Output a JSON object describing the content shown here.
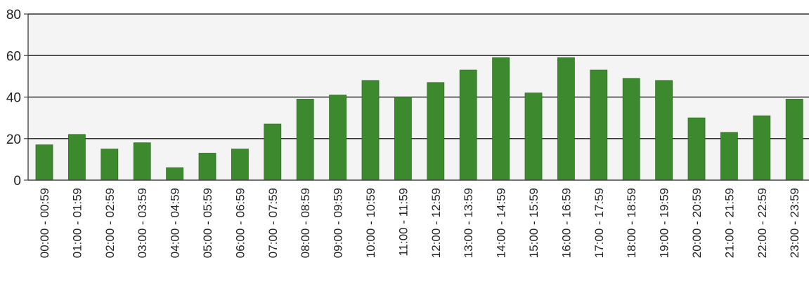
{
  "chart_data": {
    "type": "bar",
    "title": "",
    "xlabel": "",
    "ylabel": "",
    "ylim": [
      0,
      80
    ],
    "yticks": [
      0,
      20,
      40,
      60,
      80
    ],
    "grid": true,
    "legend": "none",
    "categories": [
      "00:00 - 00:59",
      "01:00 - 01:59",
      "02:00 - 02:59",
      "03:00 - 03:59",
      "04:00 - 04:59",
      "05:00 - 05:59",
      "06:00 - 06:59",
      "07:00 - 07:59",
      "08:00 - 08:59",
      "09:00 - 09:59",
      "10:00 - 10:59",
      "11:00 - 11:59",
      "12:00 - 12:59",
      "13:00 - 13:59",
      "14:00 - 14:59",
      "15:00 - 15:59",
      "16:00 - 16:59",
      "17:00 - 17:59",
      "18:00 - 18:59",
      "19:00 - 19:59",
      "20:00 - 20:59",
      "21:00 - 21:59",
      "22:00 - 22:59",
      "23:00 - 23:59"
    ],
    "values": [
      17,
      22,
      15,
      18,
      6,
      13,
      15,
      27,
      39,
      41,
      48,
      40,
      47,
      53,
      59,
      42,
      59,
      53,
      49,
      48,
      30,
      23,
      31,
      39
    ],
    "colors": {
      "bar": "#3d8a2e",
      "bar_edge": "#2f6f24",
      "grid": "#333333",
      "axis": "#444444",
      "plot_bg": "#f4f4f4"
    }
  }
}
